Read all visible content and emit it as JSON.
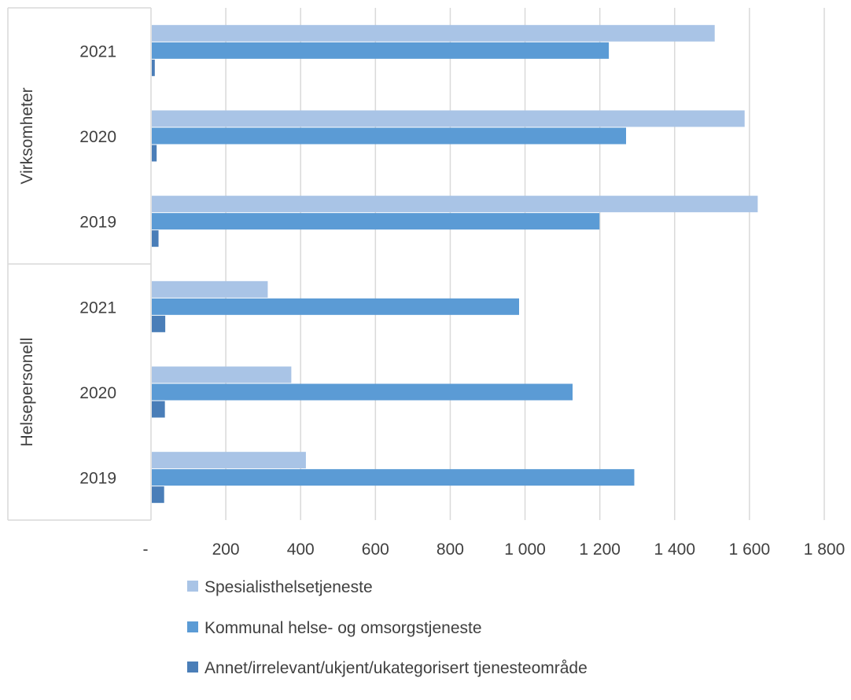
{
  "chart_data": {
    "type": "bar",
    "orientation": "horizontal",
    "title": "",
    "xlabel": "",
    "ylabel": "",
    "xlim": [
      0,
      1800
    ],
    "x_ticks": [
      0,
      200,
      400,
      600,
      800,
      1000,
      1200,
      1400,
      1600,
      1800
    ],
    "x_tick_labels": [
      "-",
      "200",
      "400",
      "600",
      "800",
      "1 000",
      "1 200",
      "1 400",
      "1 600",
      "1 800"
    ],
    "grid": "vertical",
    "legend_position": "bottom",
    "groups": [
      {
        "label": "Virksomheter",
        "categories": [
          "2021",
          "2020",
          "2019"
        ]
      },
      {
        "label": "Helsepersonell",
        "categories": [
          "2021",
          "2020",
          "2019"
        ]
      }
    ],
    "series": [
      {
        "name": "Spesialisthelsetjeneste",
        "color": "#a9c4e6",
        "values": [
          1505,
          1585,
          1620,
          310,
          373,
          412
        ]
      },
      {
        "name": "Kommunal helse- og omsorgstjeneste",
        "color": "#5b9bd5",
        "values": [
          1222,
          1268,
          1197,
          982,
          1125,
          1290
        ]
      },
      {
        "name": "Annet/irrelevant/ukjent/ukategorisert tjenesteområde",
        "color": "#4a7eb8",
        "values": [
          8,
          13,
          18,
          36,
          35,
          33
        ]
      }
    ]
  }
}
